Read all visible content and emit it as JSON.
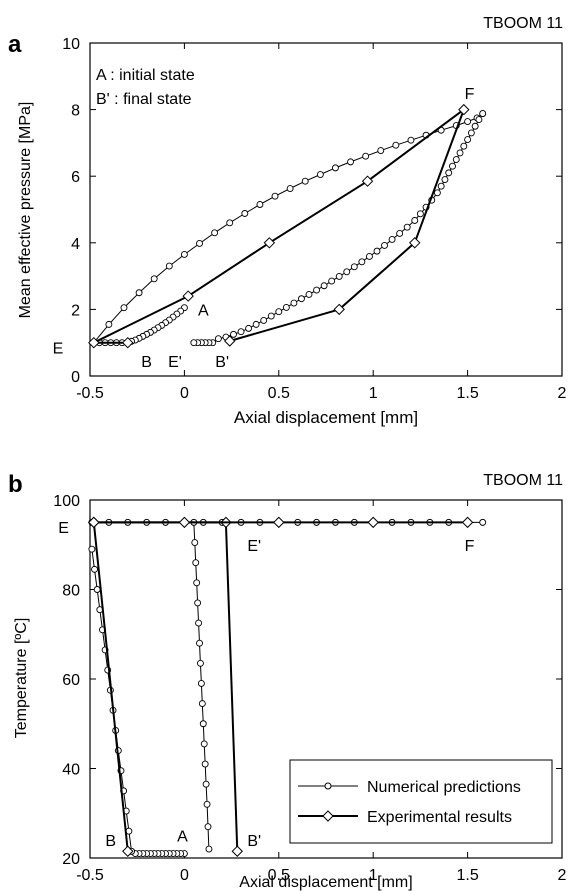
{
  "chart_data": [
    {
      "panel": "a",
      "type": "line",
      "title": "TBOOM 11",
      "xlabel": "Axial displacement [mm]",
      "ylabel": "Mean effective pressure [MPa]",
      "xlim": [
        -0.5,
        2
      ],
      "ylim": [
        0,
        10
      ],
      "x_ticks": [
        "-0.5",
        "0",
        "0.5",
        "1",
        "1.5",
        "2"
      ],
      "y_ticks": [
        "0",
        "2",
        "4",
        "6",
        "8",
        "10"
      ],
      "notes": [
        "A : initial state",
        "B' : final state"
      ],
      "series": [
        {
          "role": "numerical",
          "segments": [
            {
              "x": [
                0.0,
                -0.02,
                -0.04,
                -0.06,
                -0.08,
                -0.1,
                -0.12,
                -0.14,
                -0.16,
                -0.18,
                -0.2,
                -0.22,
                -0.24,
                -0.26,
                -0.28,
                -0.3,
                -0.33,
                -0.36,
                -0.39,
                -0.42,
                -0.45,
                -0.48
              ],
              "y": [
                2.05,
                1.95,
                1.86,
                1.77,
                1.68,
                1.6,
                1.52,
                1.45,
                1.38,
                1.31,
                1.25,
                1.19,
                1.13,
                1.08,
                1.04,
                1.0,
                1.0,
                1.0,
                1.0,
                1.0,
                1.0,
                1.0
              ]
            },
            {
              "x": [
                -0.48,
                -0.4,
                -0.32,
                -0.24,
                -0.16,
                -0.08,
                0.0,
                0.08,
                0.16,
                0.24,
                0.32,
                0.4,
                0.48,
                0.56,
                0.64,
                0.72,
                0.8,
                0.88,
                0.96,
                1.04,
                1.12,
                1.2,
                1.28,
                1.36,
                1.44,
                1.5,
                1.55,
                1.58
              ],
              "y": [
                1.0,
                1.55,
                2.05,
                2.5,
                2.92,
                3.3,
                3.65,
                3.98,
                4.3,
                4.6,
                4.88,
                5.15,
                5.4,
                5.63,
                5.85,
                6.05,
                6.25,
                6.43,
                6.6,
                6.77,
                6.93,
                7.08,
                7.23,
                7.38,
                7.52,
                7.64,
                7.75,
                7.88
              ]
            },
            {
              "x": [
                1.58,
                1.56,
                1.54,
                1.52,
                1.5,
                1.48,
                1.46,
                1.44,
                1.42,
                1.4,
                1.38,
                1.36,
                1.34,
                1.31,
                1.28,
                1.25,
                1.22,
                1.18,
                1.14,
                1.1,
                1.06,
                1.02,
                0.98,
                0.94,
                0.9,
                0.86,
                0.82,
                0.78,
                0.74,
                0.7,
                0.66,
                0.62,
                0.58,
                0.54,
                0.5,
                0.46,
                0.42,
                0.38,
                0.34,
                0.3,
                0.26,
                0.22,
                0.18,
                0.15,
                0.13,
                0.11,
                0.09,
                0.07,
                0.05
              ],
              "y": [
                7.88,
                7.7,
                7.5,
                7.3,
                7.1,
                6.9,
                6.7,
                6.5,
                6.3,
                6.1,
                5.9,
                5.7,
                5.5,
                5.28,
                5.07,
                4.87,
                4.67,
                4.47,
                4.28,
                4.1,
                3.92,
                3.75,
                3.59,
                3.43,
                3.28,
                3.13,
                2.99,
                2.85,
                2.71,
                2.58,
                2.45,
                2.32,
                2.19,
                2.06,
                1.93,
                1.8,
                1.67,
                1.55,
                1.43,
                1.33,
                1.25,
                1.17,
                1.12,
                1.0,
                1.0,
                1.0,
                1.0,
                1.0,
                1.0
              ]
            }
          ]
        },
        {
          "role": "experimental",
          "segments": [
            {
              "x": [
                -0.3,
                -0.48,
                0.02,
                0.45,
                0.97,
                1.48,
                1.22,
                0.82,
                0.24
              ],
              "y": [
                1.0,
                1.0,
                2.4,
                4.0,
                5.85,
                8.0,
                4.0,
                2.0,
                1.05
              ]
            }
          ]
        }
      ],
      "point_labels": [
        {
          "text": "A",
          "x": 0.1,
          "y": 2.0
        },
        {
          "text": "E",
          "x": -0.67,
          "y": 0.85
        },
        {
          "text": "B",
          "x": -0.2,
          "y": 0.45
        },
        {
          "text": "E'",
          "x": -0.05,
          "y": 0.45
        },
        {
          "text": "B'",
          "x": 0.2,
          "y": 0.45
        },
        {
          "text": "F",
          "x": 1.51,
          "y": 8.5
        }
      ]
    },
    {
      "panel": "b",
      "type": "line",
      "title": "TBOOM 11",
      "xlabel": "Axial displacement [mm]",
      "ylabel": "Temperature [ºC]",
      "xlim": [
        -0.5,
        2
      ],
      "ylim": [
        20,
        100
      ],
      "x_ticks": [
        "-0.5",
        "0",
        "0.5",
        "1",
        "1.5",
        "2"
      ],
      "y_ticks": [
        "20",
        "40",
        "60",
        "80",
        "100"
      ],
      "legend": {
        "placement": "lower-right",
        "entries": [
          {
            "label": "Numerical predictions",
            "marker": "circle"
          },
          {
            "label": "Experimental results",
            "marker": "diamond"
          }
        ]
      },
      "series": [
        {
          "role": "numerical",
          "segments": [
            {
              "x": [
                0.0,
                -0.02,
                -0.04,
                -0.06,
                -0.08,
                -0.1,
                -0.12,
                -0.14,
                -0.16,
                -0.18,
                -0.2,
                -0.22,
                -0.24,
                -0.26,
                -0.28
              ],
              "y": [
                21,
                21,
                21,
                21,
                21,
                21,
                21,
                21,
                21,
                21,
                21,
                21,
                21,
                21,
                21.5
              ]
            },
            {
              "x": [
                -0.28,
                -0.294,
                -0.308,
                -0.322,
                -0.336,
                -0.35,
                -0.364,
                -0.378,
                -0.392,
                -0.406,
                -0.42,
                -0.434,
                -0.448,
                -0.462,
                -0.476,
                -0.49
              ],
              "y": [
                21.5,
                26,
                30.5,
                35,
                39.5,
                44,
                48.5,
                53,
                57.5,
                62,
                66.5,
                71,
                75.5,
                80,
                84.5,
                89
              ]
            },
            {
              "x": [
                -0.49,
                -0.4,
                -0.3,
                -0.2,
                -0.1,
                0.0,
                0.1,
                0.2,
                0.3,
                0.4,
                0.5,
                0.6,
                0.7,
                0.8,
                0.9,
                1.0,
                1.1,
                1.2,
                1.3,
                1.4,
                1.5,
                1.58
              ],
              "y": [
                95,
                95,
                95,
                95,
                95,
                95,
                95,
                95,
                95,
                95,
                95,
                95,
                95,
                95,
                95,
                95,
                95,
                95,
                95,
                95,
                95,
                95
              ]
            },
            {
              "x": [
                0.05,
                0.055,
                0.06,
                0.065,
                0.07,
                0.075,
                0.08,
                0.085,
                0.09,
                0.095,
                0.1,
                0.105,
                0.11,
                0.115,
                0.12,
                0.125,
                0.13
              ],
              "y": [
                95,
                90.5,
                86,
                81.5,
                77,
                72.5,
                68,
                63.5,
                59,
                54.5,
                50,
                45.5,
                41,
                36.5,
                32,
                27,
                22
              ]
            }
          ]
        },
        {
          "role": "experimental",
          "segments": [
            {
              "x": [
                -0.3,
                -0.48,
                0.22,
                0.28
              ],
              "y": [
                21.5,
                95,
                95,
                21.5
              ]
            },
            {
              "x": [
                -0.48,
                0.0,
                0.5,
                1.0,
                1.5
              ],
              "y": [
                95,
                95,
                95,
                95,
                95
              ]
            }
          ]
        }
      ],
      "point_labels": [
        {
          "text": "E",
          "x": -0.64,
          "y": 94
        },
        {
          "text": "E'",
          "x": 0.37,
          "y": 90
        },
        {
          "text": "F",
          "x": 1.51,
          "y": 90
        },
        {
          "text": "A",
          "x": -0.01,
          "y": 25
        },
        {
          "text": "B",
          "x": -0.39,
          "y": 24
        },
        {
          "text": "B'",
          "x": 0.37,
          "y": 24
        }
      ]
    }
  ]
}
